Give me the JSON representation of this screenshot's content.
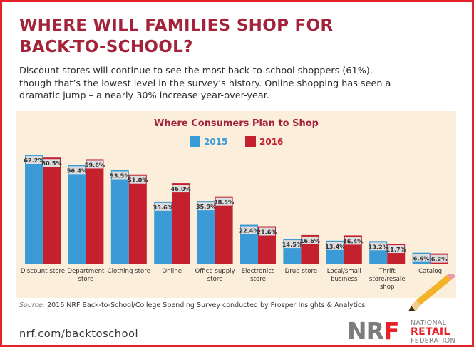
{
  "header": {
    "headline_line1": "WHERE WILL FAMILIES SHOP FOR",
    "headline_line2": "BACK-TO-SCHOOL?",
    "intro_line1": "Discount stores will continue to see the most back-to-school shoppers (61%),",
    "intro_line2": "though that’s the lowest level in the survey’s history. Online shopping has seen a",
    "intro_line3": "dramatic jump – a nearly 30% increase year-over-year."
  },
  "chart_data": {
    "type": "bar",
    "title": "Where Consumers Plan to Shop",
    "ylim": [
      0,
      62.2
    ],
    "grid": false,
    "legend_position": "top-center",
    "categories": [
      [
        "Discount store"
      ],
      [
        "Department",
        "store"
      ],
      [
        "Clothing store"
      ],
      [
        "Online"
      ],
      [
        "Office supply",
        "store"
      ],
      [
        "Electronics",
        "store"
      ],
      [
        "Drug store"
      ],
      [
        "Local/small",
        "business"
      ],
      [
        "Thrift",
        "store/resale",
        "shop"
      ],
      [
        "Catalog"
      ]
    ],
    "series": [
      {
        "name": "2015",
        "color": "#3b9bd6",
        "values": [
          62.2,
          56.4,
          53.5,
          35.6,
          35.9,
          22.4,
          14.5,
          13.4,
          13.2,
          6.6
        ],
        "labels": [
          "62.2%",
          "56.4%",
          "53.5%",
          "35.6%",
          "35.9%",
          "22.4%",
          "14.5%",
          "13.4%",
          "13.2%",
          "6.6%"
        ]
      },
      {
        "name": "2016",
        "color": "#c5202e",
        "values": [
          60.5,
          59.6,
          51.0,
          46.0,
          38.5,
          21.6,
          16.6,
          16.4,
          11.7,
          6.2
        ],
        "labels": [
          "60.5%",
          "59.6%",
          "51.0%",
          "46.0%",
          "38.5%",
          "21.6%",
          "16.6%",
          "16.4%",
          "11.7%",
          "6.2%"
        ]
      }
    ]
  },
  "footer": {
    "source_label": "Source:",
    "source_text": " 2016 NRF Back-to-School/College Spending Survey conducted by Prosper Insights & Analytics",
    "url": "nrf.com/backtoschool",
    "logo_mark_nr": "NR",
    "logo_mark_f": "F",
    "logo_line1": "NATIONAL",
    "logo_line2": "RETAIL",
    "logo_line3": "FEDERATION"
  },
  "colors": {
    "frame": "#e8202a",
    "headline": "#a3233a",
    "panel_background": "#fbeedb",
    "label_box": "#dcdcdc"
  },
  "icons": [
    "pencil-icon"
  ]
}
